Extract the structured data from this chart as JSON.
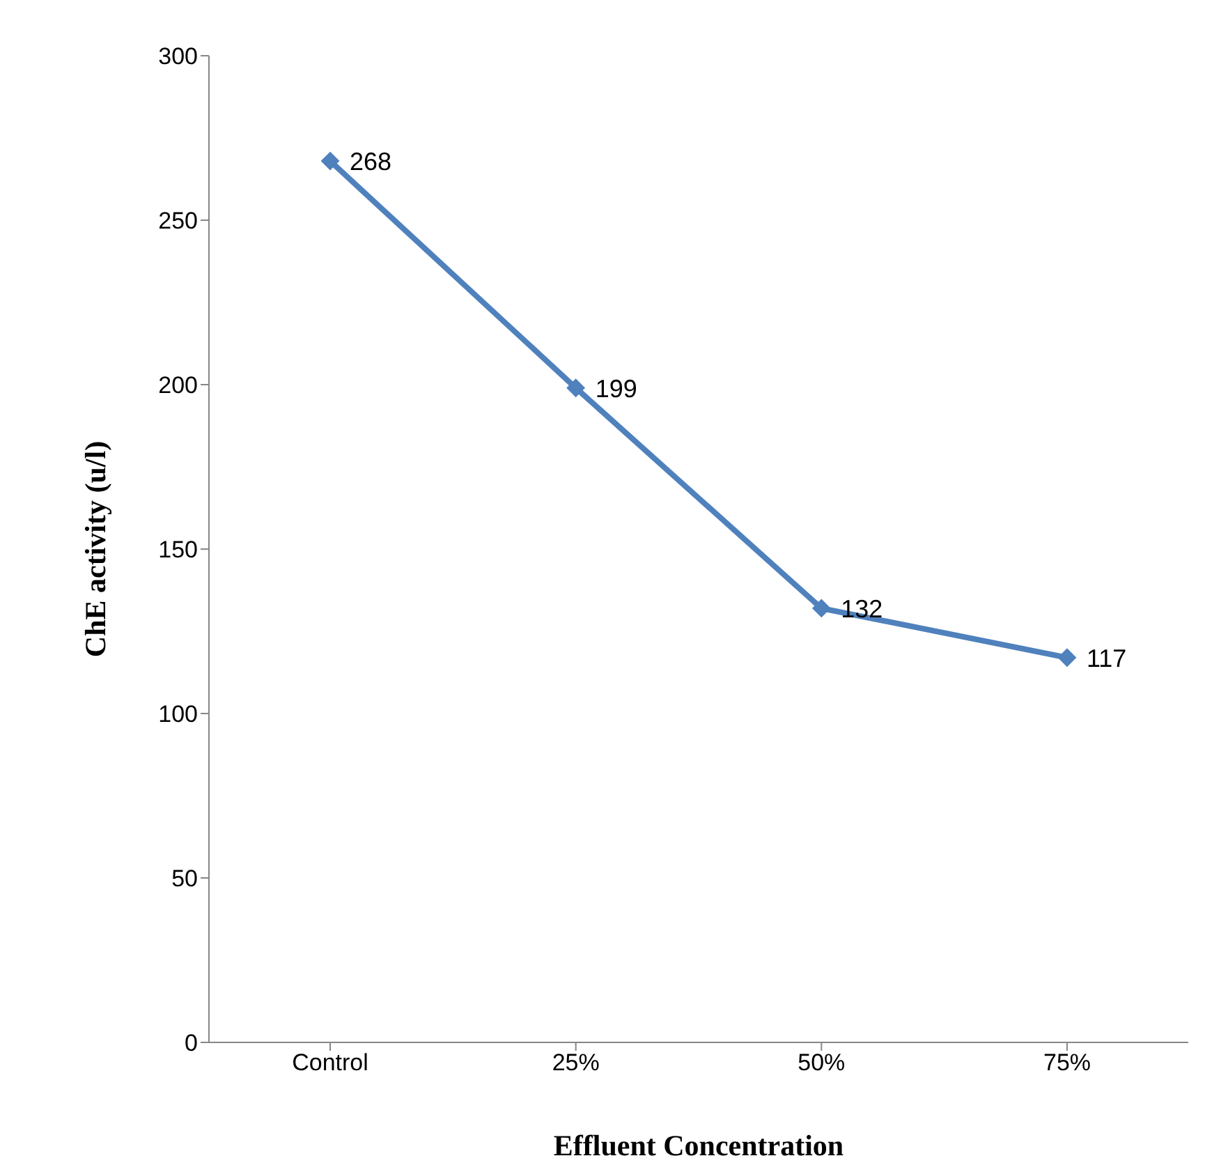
{
  "chart_data": {
    "type": "line",
    "xlabel": "Effluent Concentration",
    "ylabel": "ChE activity (u/l)",
    "categories": [
      "Control",
      "25%",
      "50%",
      "75%"
    ],
    "series": [
      {
        "color": "#4f81bd",
        "values": [
          268,
          199,
          132,
          117
        ]
      }
    ],
    "ylim": [
      0,
      300
    ],
    "yticks": [
      0,
      50,
      100,
      150,
      200,
      250,
      300
    ],
    "grid": false,
    "legend": false,
    "marker": "diamond",
    "line_style": "solid",
    "data_labels": true
  }
}
